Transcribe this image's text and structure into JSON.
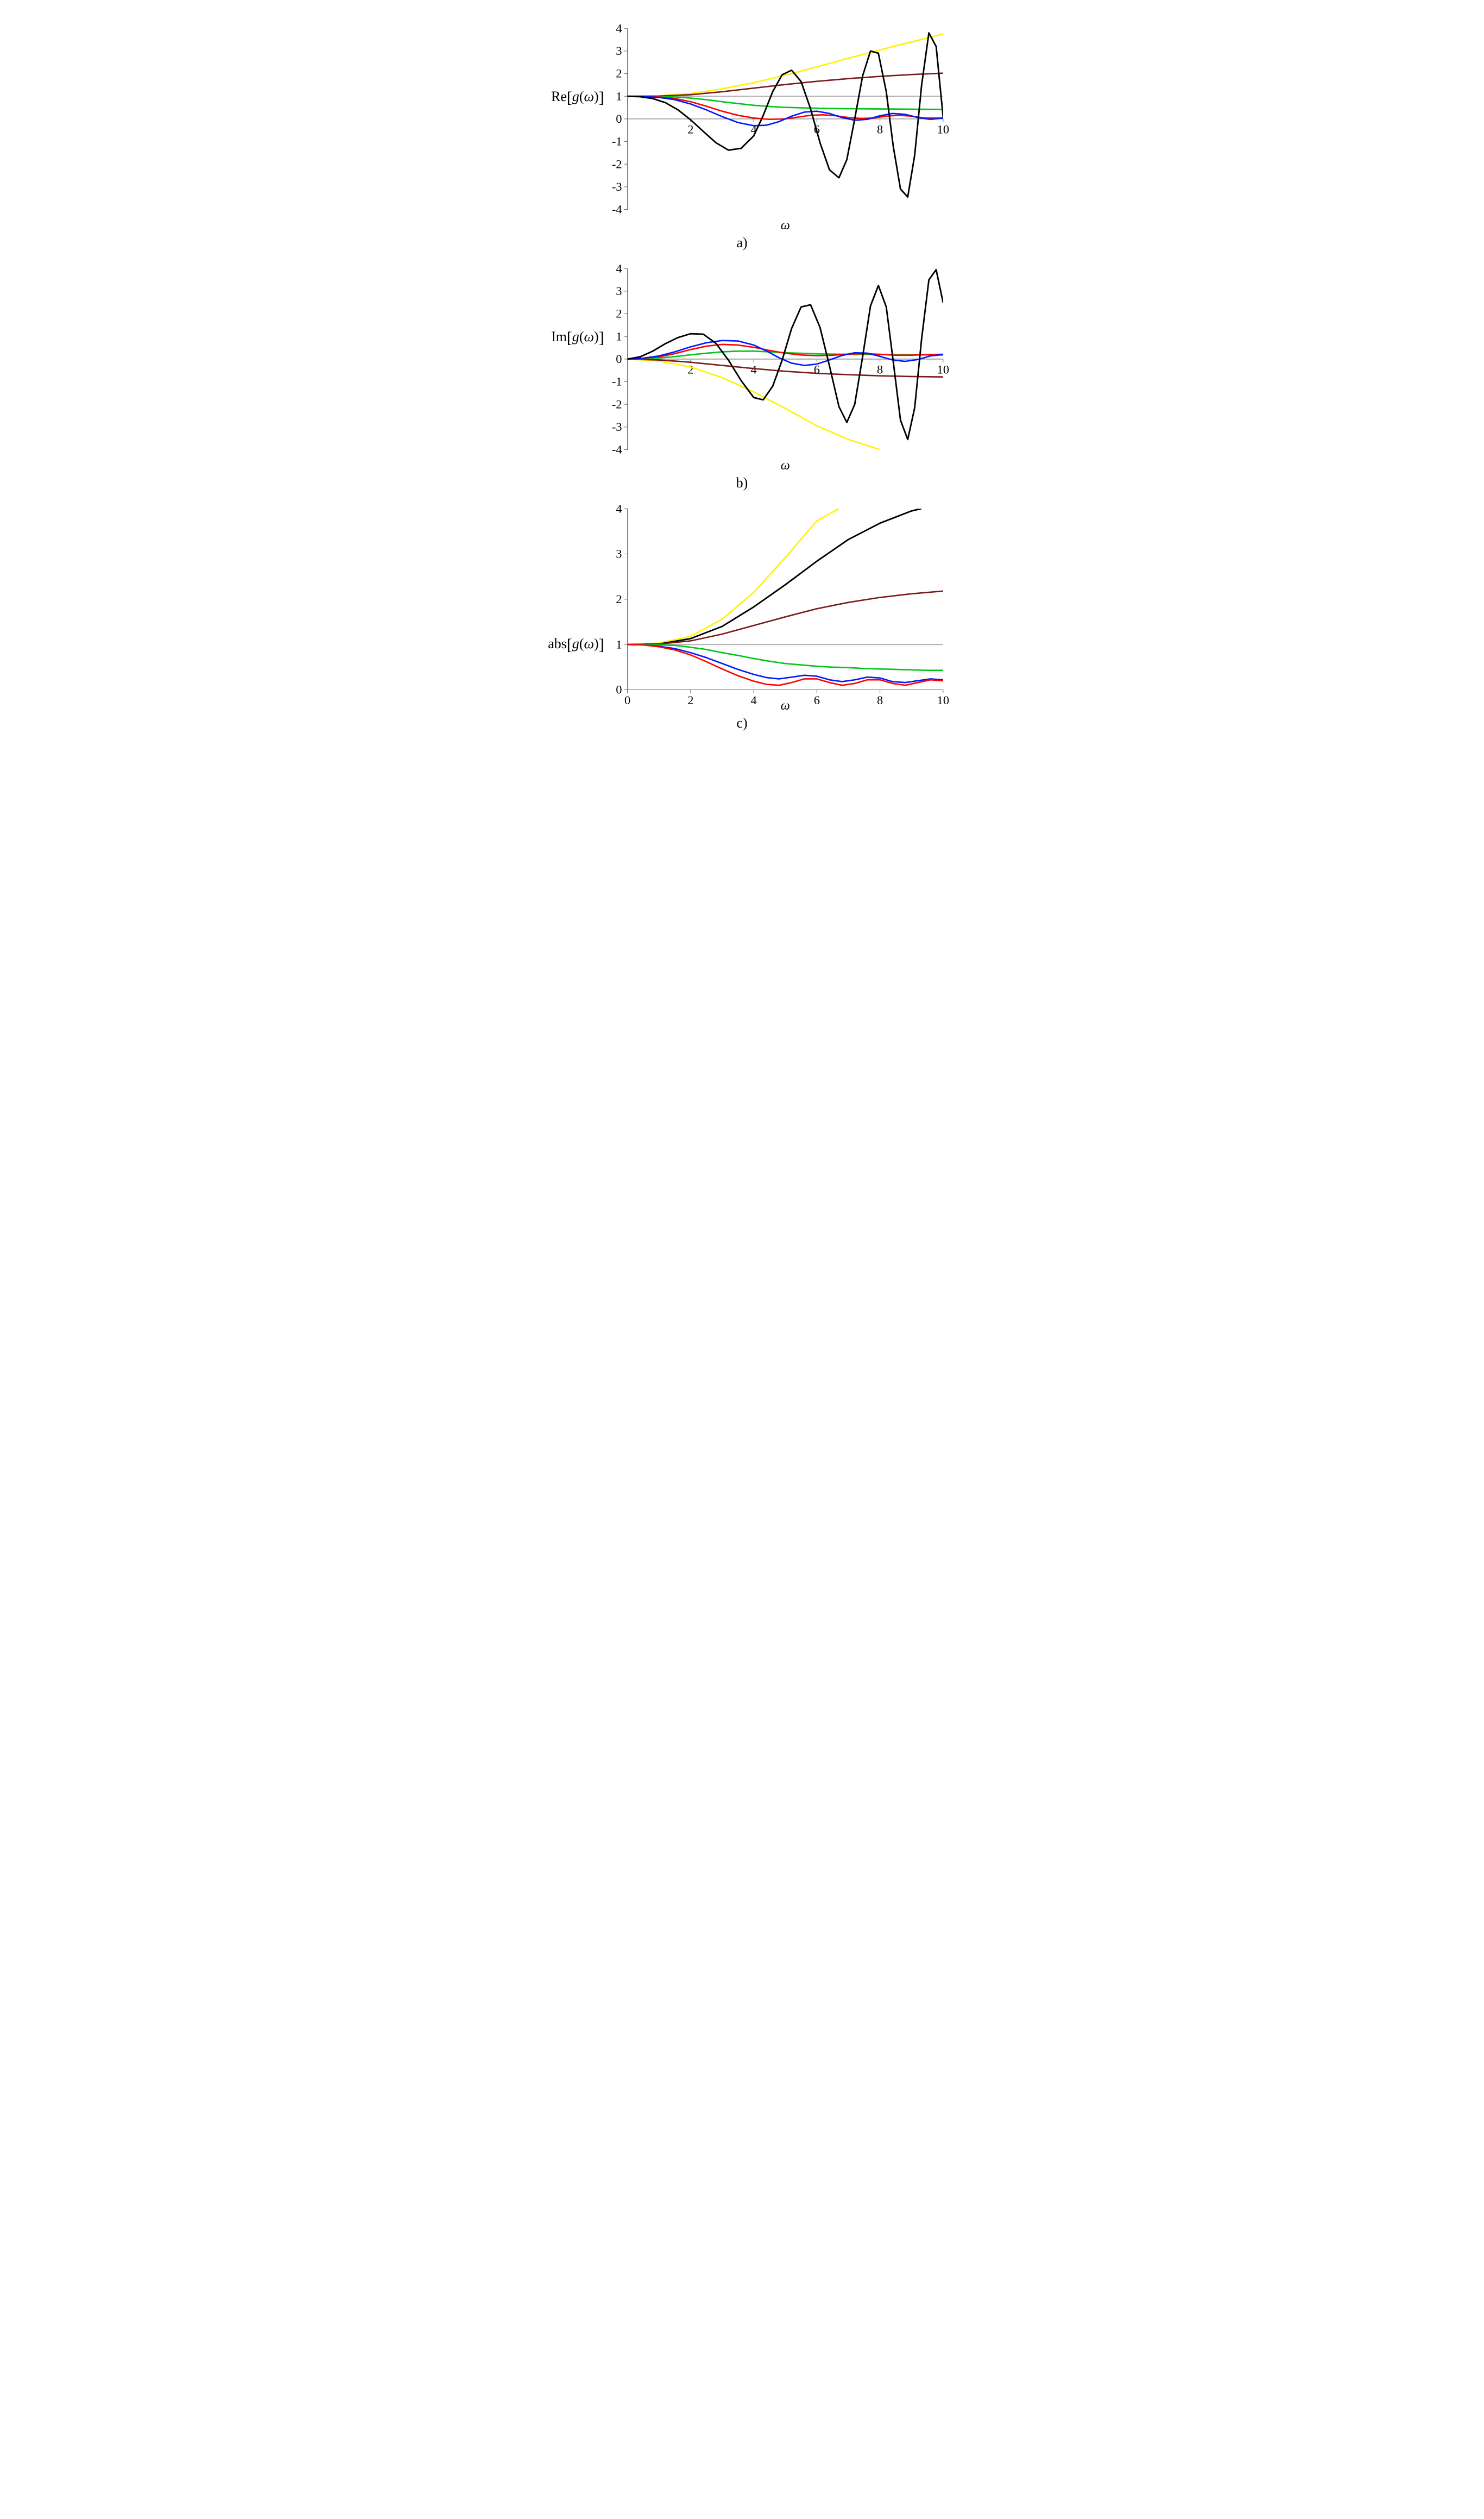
{
  "figure": {
    "background_color": "#ffffff",
    "aspect_per_panel": 0.66,
    "panel_order": [
      "a",
      "b",
      "c"
    ],
    "line_width": 2.6,
    "axis_color": "#666666",
    "tick_length": 6,
    "tick_label_fontsize": 22,
    "axis_title_fontsize": 24,
    "caption_fontsize": 26
  },
  "panels": {
    "a": {
      "caption": "a)",
      "ylabel_prefix": "Re",
      "ylabel_inner_var": "g",
      "ylabel_inner_arg": "ω",
      "xlabel": "ω",
      "xlim": [
        0,
        10
      ],
      "ylim": [
        -4,
        4
      ],
      "xticks": [
        2,
        4,
        6,
        8,
        10
      ],
      "yticks": [
        -4,
        -3,
        -2,
        -1,
        0,
        1,
        2,
        3,
        4
      ],
      "zero_axis_y": 0,
      "series": [
        {
          "name": "gray-ref",
          "color": "#b5b5b5",
          "width": 2.2,
          "x": [
            0,
            10
          ],
          "y": [
            1,
            1
          ]
        },
        {
          "name": "yellow",
          "color": "#fff200",
          "width": 2.6,
          "x": [
            0,
            1,
            2,
            3,
            4,
            5,
            6,
            7,
            8,
            9,
            10
          ],
          "y": [
            1.0,
            1.02,
            1.12,
            1.33,
            1.6,
            1.93,
            2.3,
            2.68,
            3.05,
            3.4,
            3.75
          ]
        },
        {
          "name": "darkred",
          "color": "#7a1b1b",
          "width": 2.6,
          "x": [
            0,
            1,
            2,
            3,
            4,
            5,
            6,
            7,
            8,
            9,
            10
          ],
          "y": [
            1.0,
            1.01,
            1.07,
            1.2,
            1.36,
            1.52,
            1.66,
            1.78,
            1.88,
            1.96,
            2.02
          ]
        },
        {
          "name": "green",
          "color": "#00c51b",
          "width": 2.6,
          "x": [
            0,
            0.5,
            1,
            1.5,
            2,
            2.5,
            3,
            3.5,
            4,
            4.5,
            5,
            5.5,
            6,
            7,
            8,
            9,
            10
          ],
          "y": [
            1.0,
            1.0,
            0.99,
            0.97,
            0.92,
            0.85,
            0.76,
            0.68,
            0.6,
            0.55,
            0.51,
            0.49,
            0.47,
            0.45,
            0.44,
            0.43,
            0.42
          ]
        },
        {
          "name": "red",
          "color": "#ff0000",
          "width": 2.6,
          "x": [
            0,
            0.5,
            1,
            1.5,
            2,
            2.5,
            3,
            3.5,
            4,
            4.5,
            5,
            5.4,
            5.8,
            6.2,
            6.6,
            7,
            7.4,
            7.8,
            8.2,
            8.6,
            9,
            9.4,
            10
          ],
          "y": [
            1.0,
            0.99,
            0.97,
            0.9,
            0.76,
            0.56,
            0.34,
            0.16,
            0.04,
            -0.02,
            0.0,
            0.08,
            0.16,
            0.18,
            0.14,
            0.06,
            0.02,
            0.04,
            0.12,
            0.16,
            0.12,
            0.04,
            0.04
          ]
        },
        {
          "name": "blue",
          "color": "#0018ff",
          "width": 2.6,
          "x": [
            0,
            0.5,
            1,
            1.5,
            2,
            2.5,
            3,
            3.5,
            4,
            4.4,
            4.8,
            5.2,
            5.6,
            6,
            6.4,
            6.8,
            7.2,
            7.6,
            8,
            8.4,
            8.8,
            9.2,
            9.6,
            10
          ],
          "y": [
            1.0,
            0.99,
            0.95,
            0.85,
            0.66,
            0.4,
            0.1,
            -0.16,
            -0.3,
            -0.28,
            -0.12,
            0.12,
            0.3,
            0.34,
            0.24,
            0.06,
            -0.06,
            -0.02,
            0.14,
            0.24,
            0.2,
            0.06,
            -0.02,
            0.04
          ]
        },
        {
          "name": "black",
          "color": "#000000",
          "width": 2.8,
          "x": [
            0,
            0.4,
            0.8,
            1.2,
            1.6,
            2.0,
            2.4,
            2.8,
            3.2,
            3.6,
            4.0,
            4.3,
            4.6,
            4.9,
            5.2,
            5.5,
            5.8,
            6.1,
            6.4,
            6.7,
            6.95,
            7.2,
            7.45,
            7.7,
            7.95,
            8.2,
            8.42,
            8.65,
            8.88,
            9.1,
            9.32,
            9.55,
            9.78,
            10
          ],
          "y": [
            1.0,
            0.98,
            0.9,
            0.72,
            0.4,
            -0.04,
            -0.55,
            -1.05,
            -1.38,
            -1.3,
            -0.75,
            0.15,
            1.2,
            1.95,
            2.15,
            1.65,
            0.45,
            -1.05,
            -2.25,
            -2.6,
            -1.8,
            0.0,
            1.9,
            3.0,
            2.9,
            1.2,
            -1.2,
            -3.1,
            -3.45,
            -1.6,
            1.5,
            3.8,
            3.2,
            0.1
          ]
        }
      ]
    },
    "b": {
      "caption": "b)",
      "ylabel_prefix": "Im",
      "ylabel_inner_var": "g",
      "ylabel_inner_arg": "ω",
      "xlabel": "ω",
      "xlim": [
        0,
        10
      ],
      "ylim": [
        -4,
        4
      ],
      "xticks": [
        2,
        4,
        6,
        8,
        10
      ],
      "yticks": [
        -4,
        -3,
        -2,
        -1,
        0,
        1,
        2,
        3,
        4
      ],
      "zero_axis_y": 0,
      "series": [
        {
          "name": "gray-ref",
          "color": "#b5b5b5",
          "width": 2.2,
          "x": [
            0,
            10
          ],
          "y": [
            0,
            0
          ]
        },
        {
          "name": "yellow",
          "color": "#fff200",
          "width": 2.6,
          "x": [
            0,
            1,
            2,
            3,
            4,
            5,
            6,
            7,
            8
          ],
          "y": [
            0.0,
            -0.08,
            -0.35,
            -0.82,
            -1.45,
            -2.18,
            -2.95,
            -3.55,
            -4.0
          ]
        },
        {
          "name": "darkred",
          "color": "#7a1b1b",
          "width": 2.6,
          "x": [
            0,
            1,
            2,
            3,
            4,
            5,
            6,
            7,
            8,
            9,
            10
          ],
          "y": [
            0.0,
            -0.04,
            -0.14,
            -0.28,
            -0.42,
            -0.54,
            -0.63,
            -0.69,
            -0.74,
            -0.77,
            -0.79
          ]
        },
        {
          "name": "green",
          "color": "#00c51b",
          "width": 2.6,
          "x": [
            0,
            0.5,
            1,
            1.5,
            2,
            2.5,
            3,
            3.5,
            4,
            4.5,
            5,
            6,
            7,
            8,
            9,
            10
          ],
          "y": [
            0.0,
            0.02,
            0.05,
            0.11,
            0.19,
            0.26,
            0.32,
            0.35,
            0.35,
            0.32,
            0.28,
            0.23,
            0.21,
            0.2,
            0.19,
            0.18
          ]
        },
        {
          "name": "red",
          "color": "#ff0000",
          "width": 2.6,
          "x": [
            0,
            0.5,
            1,
            1.5,
            2,
            2.5,
            3,
            3.5,
            4,
            4.5,
            5,
            5.5,
            6,
            6.5,
            7,
            7.5,
            8,
            8.5,
            9,
            9.5,
            10
          ],
          "y": [
            0.0,
            0.03,
            0.1,
            0.24,
            0.42,
            0.57,
            0.65,
            0.62,
            0.52,
            0.38,
            0.26,
            0.18,
            0.15,
            0.17,
            0.22,
            0.24,
            0.21,
            0.17,
            0.17,
            0.2,
            0.21
          ]
        },
        {
          "name": "blue",
          "color": "#0018ff",
          "width": 2.6,
          "x": [
            0,
            0.5,
            1,
            1.5,
            2,
            2.5,
            3,
            3.5,
            4,
            4.4,
            4.8,
            5.2,
            5.6,
            6,
            6.4,
            6.8,
            7.2,
            7.6,
            8,
            8.4,
            8.8,
            9.2,
            9.6,
            10
          ],
          "y": [
            0.0,
            0.04,
            0.14,
            0.32,
            0.54,
            0.72,
            0.82,
            0.8,
            0.62,
            0.36,
            0.06,
            -0.18,
            -0.28,
            -0.22,
            -0.04,
            0.16,
            0.28,
            0.26,
            0.12,
            -0.04,
            -0.1,
            -0.02,
            0.14,
            0.2
          ]
        },
        {
          "name": "black",
          "color": "#000000",
          "width": 2.8,
          "x": [
            0,
            0.4,
            0.8,
            1.2,
            1.6,
            2.0,
            2.4,
            2.8,
            3.2,
            3.6,
            4.0,
            4.3,
            4.6,
            4.9,
            5.2,
            5.5,
            5.8,
            6.1,
            6.4,
            6.7,
            6.95,
            7.2,
            7.45,
            7.7,
            7.95,
            8.2,
            8.42,
            8.65,
            8.88,
            9.1,
            9.32,
            9.55,
            9.78,
            10
          ],
          "y": [
            0.0,
            0.1,
            0.35,
            0.68,
            0.95,
            1.12,
            1.1,
            0.7,
            -0.05,
            -0.95,
            -1.7,
            -1.8,
            -1.2,
            -0.05,
            1.35,
            2.3,
            2.4,
            1.4,
            -0.3,
            -2.1,
            -2.8,
            -2.0,
            0.1,
            2.35,
            3.25,
            2.3,
            -0.1,
            -2.7,
            -3.55,
            -2.15,
            0.9,
            3.5,
            3.95,
            2.5
          ]
        }
      ]
    },
    "c": {
      "caption": "c)",
      "ylabel_prefix": "abs",
      "ylabel_inner_var": "g",
      "ylabel_inner_arg": "ω",
      "xlabel": "ω",
      "xlim": [
        0,
        10
      ],
      "ylim": [
        0,
        4
      ],
      "xticks": [
        0,
        2,
        4,
        6,
        8,
        10
      ],
      "yticks": [
        0,
        1,
        2,
        3,
        4
      ],
      "zero_axis_y": 0,
      "series": [
        {
          "name": "gray-ref",
          "color": "#b5b5b5",
          "width": 2.2,
          "x": [
            0,
            10
          ],
          "y": [
            1,
            1
          ]
        },
        {
          "name": "yellow",
          "color": "#fff200",
          "width": 2.6,
          "x": [
            0,
            1,
            2,
            3,
            4,
            5,
            6,
            6.7
          ],
          "y": [
            1.0,
            1.03,
            1.18,
            1.56,
            2.15,
            2.92,
            3.73,
            4.0
          ]
        },
        {
          "name": "black",
          "color": "#000000",
          "width": 2.8,
          "x": [
            0,
            1,
            2,
            3,
            4,
            5,
            6,
            7,
            8,
            9,
            9.3
          ],
          "y": [
            1.0,
            1.01,
            1.13,
            1.4,
            1.83,
            2.32,
            2.84,
            3.32,
            3.68,
            3.95,
            4.0
          ]
        },
        {
          "name": "darkred",
          "color": "#7a1b1b",
          "width": 2.6,
          "x": [
            0,
            1,
            2,
            3,
            4,
            5,
            6,
            7,
            8,
            9,
            10
          ],
          "y": [
            1.0,
            1.01,
            1.08,
            1.23,
            1.42,
            1.61,
            1.79,
            1.93,
            2.04,
            2.12,
            2.18
          ]
        },
        {
          "name": "green",
          "color": "#00c51b",
          "width": 2.6,
          "x": [
            0,
            0.5,
            1,
            1.5,
            2,
            2.5,
            3,
            3.5,
            4,
            4.5,
            5,
            5.5,
            6,
            6.5,
            7,
            7.5,
            8,
            8.5,
            9,
            9.5,
            10
          ],
          "y": [
            1.0,
            1.0,
            0.99,
            0.98,
            0.94,
            0.89,
            0.82,
            0.76,
            0.69,
            0.63,
            0.58,
            0.55,
            0.52,
            0.5,
            0.49,
            0.47,
            0.46,
            0.45,
            0.44,
            0.43,
            0.43
          ]
        },
        {
          "name": "blue",
          "color": "#0018ff",
          "width": 2.6,
          "x": [
            0,
            0.5,
            1,
            1.5,
            2,
            2.5,
            3,
            3.5,
            4,
            4.4,
            4.8,
            5.2,
            5.6,
            6,
            6.4,
            6.8,
            7.2,
            7.6,
            8,
            8.4,
            8.8,
            9.2,
            9.6,
            10
          ],
          "y": [
            1.0,
            0.99,
            0.96,
            0.91,
            0.82,
            0.71,
            0.58,
            0.45,
            0.34,
            0.27,
            0.24,
            0.28,
            0.32,
            0.3,
            0.22,
            0.18,
            0.22,
            0.28,
            0.26,
            0.18,
            0.16,
            0.2,
            0.24,
            0.22
          ]
        },
        {
          "name": "red",
          "color": "#ff0000",
          "width": 2.6,
          "x": [
            0,
            0.5,
            1,
            1.5,
            2,
            2.5,
            3,
            3.5,
            4,
            4.4,
            4.8,
            5.2,
            5.6,
            6,
            6.4,
            6.8,
            7.2,
            7.6,
            8,
            8.4,
            8.8,
            9.2,
            9.6,
            10
          ],
          "y": [
            1.0,
            0.99,
            0.95,
            0.88,
            0.77,
            0.62,
            0.46,
            0.31,
            0.19,
            0.12,
            0.1,
            0.16,
            0.24,
            0.24,
            0.16,
            0.1,
            0.14,
            0.22,
            0.22,
            0.14,
            0.1,
            0.16,
            0.22,
            0.2
          ]
        }
      ]
    }
  }
}
